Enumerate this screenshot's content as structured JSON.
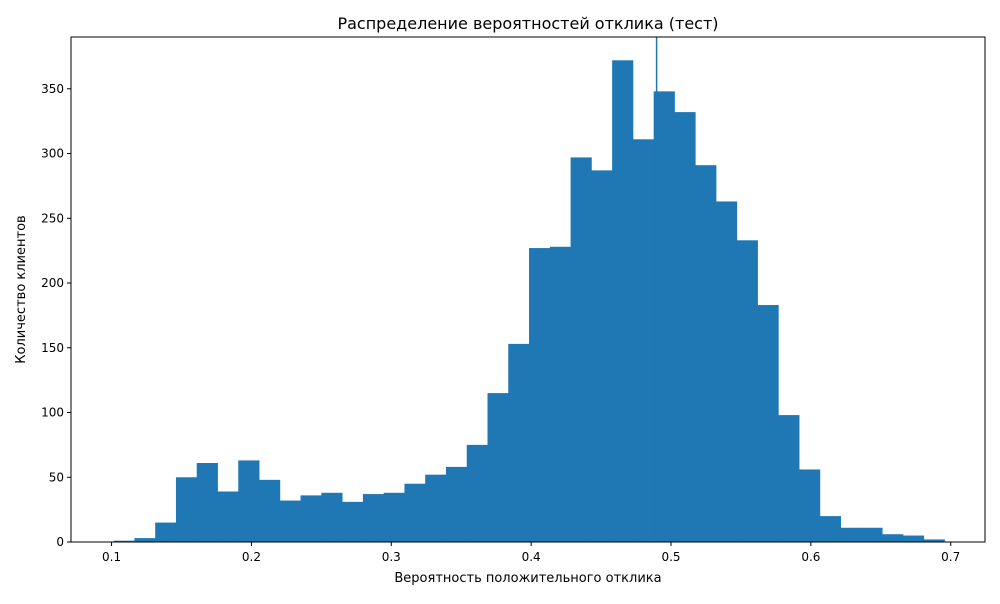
{
  "chart_data": {
    "type": "bar",
    "title": "Распределение вероятностей отклика (тест)",
    "xlabel": "Вероятность положительного отклика",
    "ylabel": "Количество клиентов",
    "xlim": [
      0.071,
      0.7245
    ],
    "ylim": [
      0,
      390
    ],
    "xticks": [
      0.1,
      0.2,
      0.3,
      0.4,
      0.5,
      0.6,
      0.7
    ],
    "xtick_labels": [
      "0.1",
      "0.2",
      "0.3",
      "0.4",
      "0.5",
      "0.6",
      "0.7"
    ],
    "yticks": [
      0,
      50,
      100,
      150,
      200,
      250,
      300,
      350
    ],
    "ytick_labels": [
      "0",
      "50",
      "100",
      "150",
      "200",
      "250",
      "300",
      "350"
    ],
    "bins_start": 0.1015,
    "bin_width": 0.01485,
    "counts": [
      1,
      3,
      15,
      50,
      61,
      39,
      63,
      48,
      32,
      36,
      38,
      31,
      37,
      38,
      45,
      52,
      58,
      75,
      115,
      153,
      227,
      228,
      297,
      287,
      372,
      311,
      348,
      332,
      291,
      263,
      233,
      183,
      98,
      56,
      20,
      11,
      11,
      6,
      5,
      2
    ],
    "threshold_x": 0.4897,
    "grid": false,
    "colors": {
      "bars": "#1f77b4",
      "threshold": "#1f77b4"
    }
  }
}
